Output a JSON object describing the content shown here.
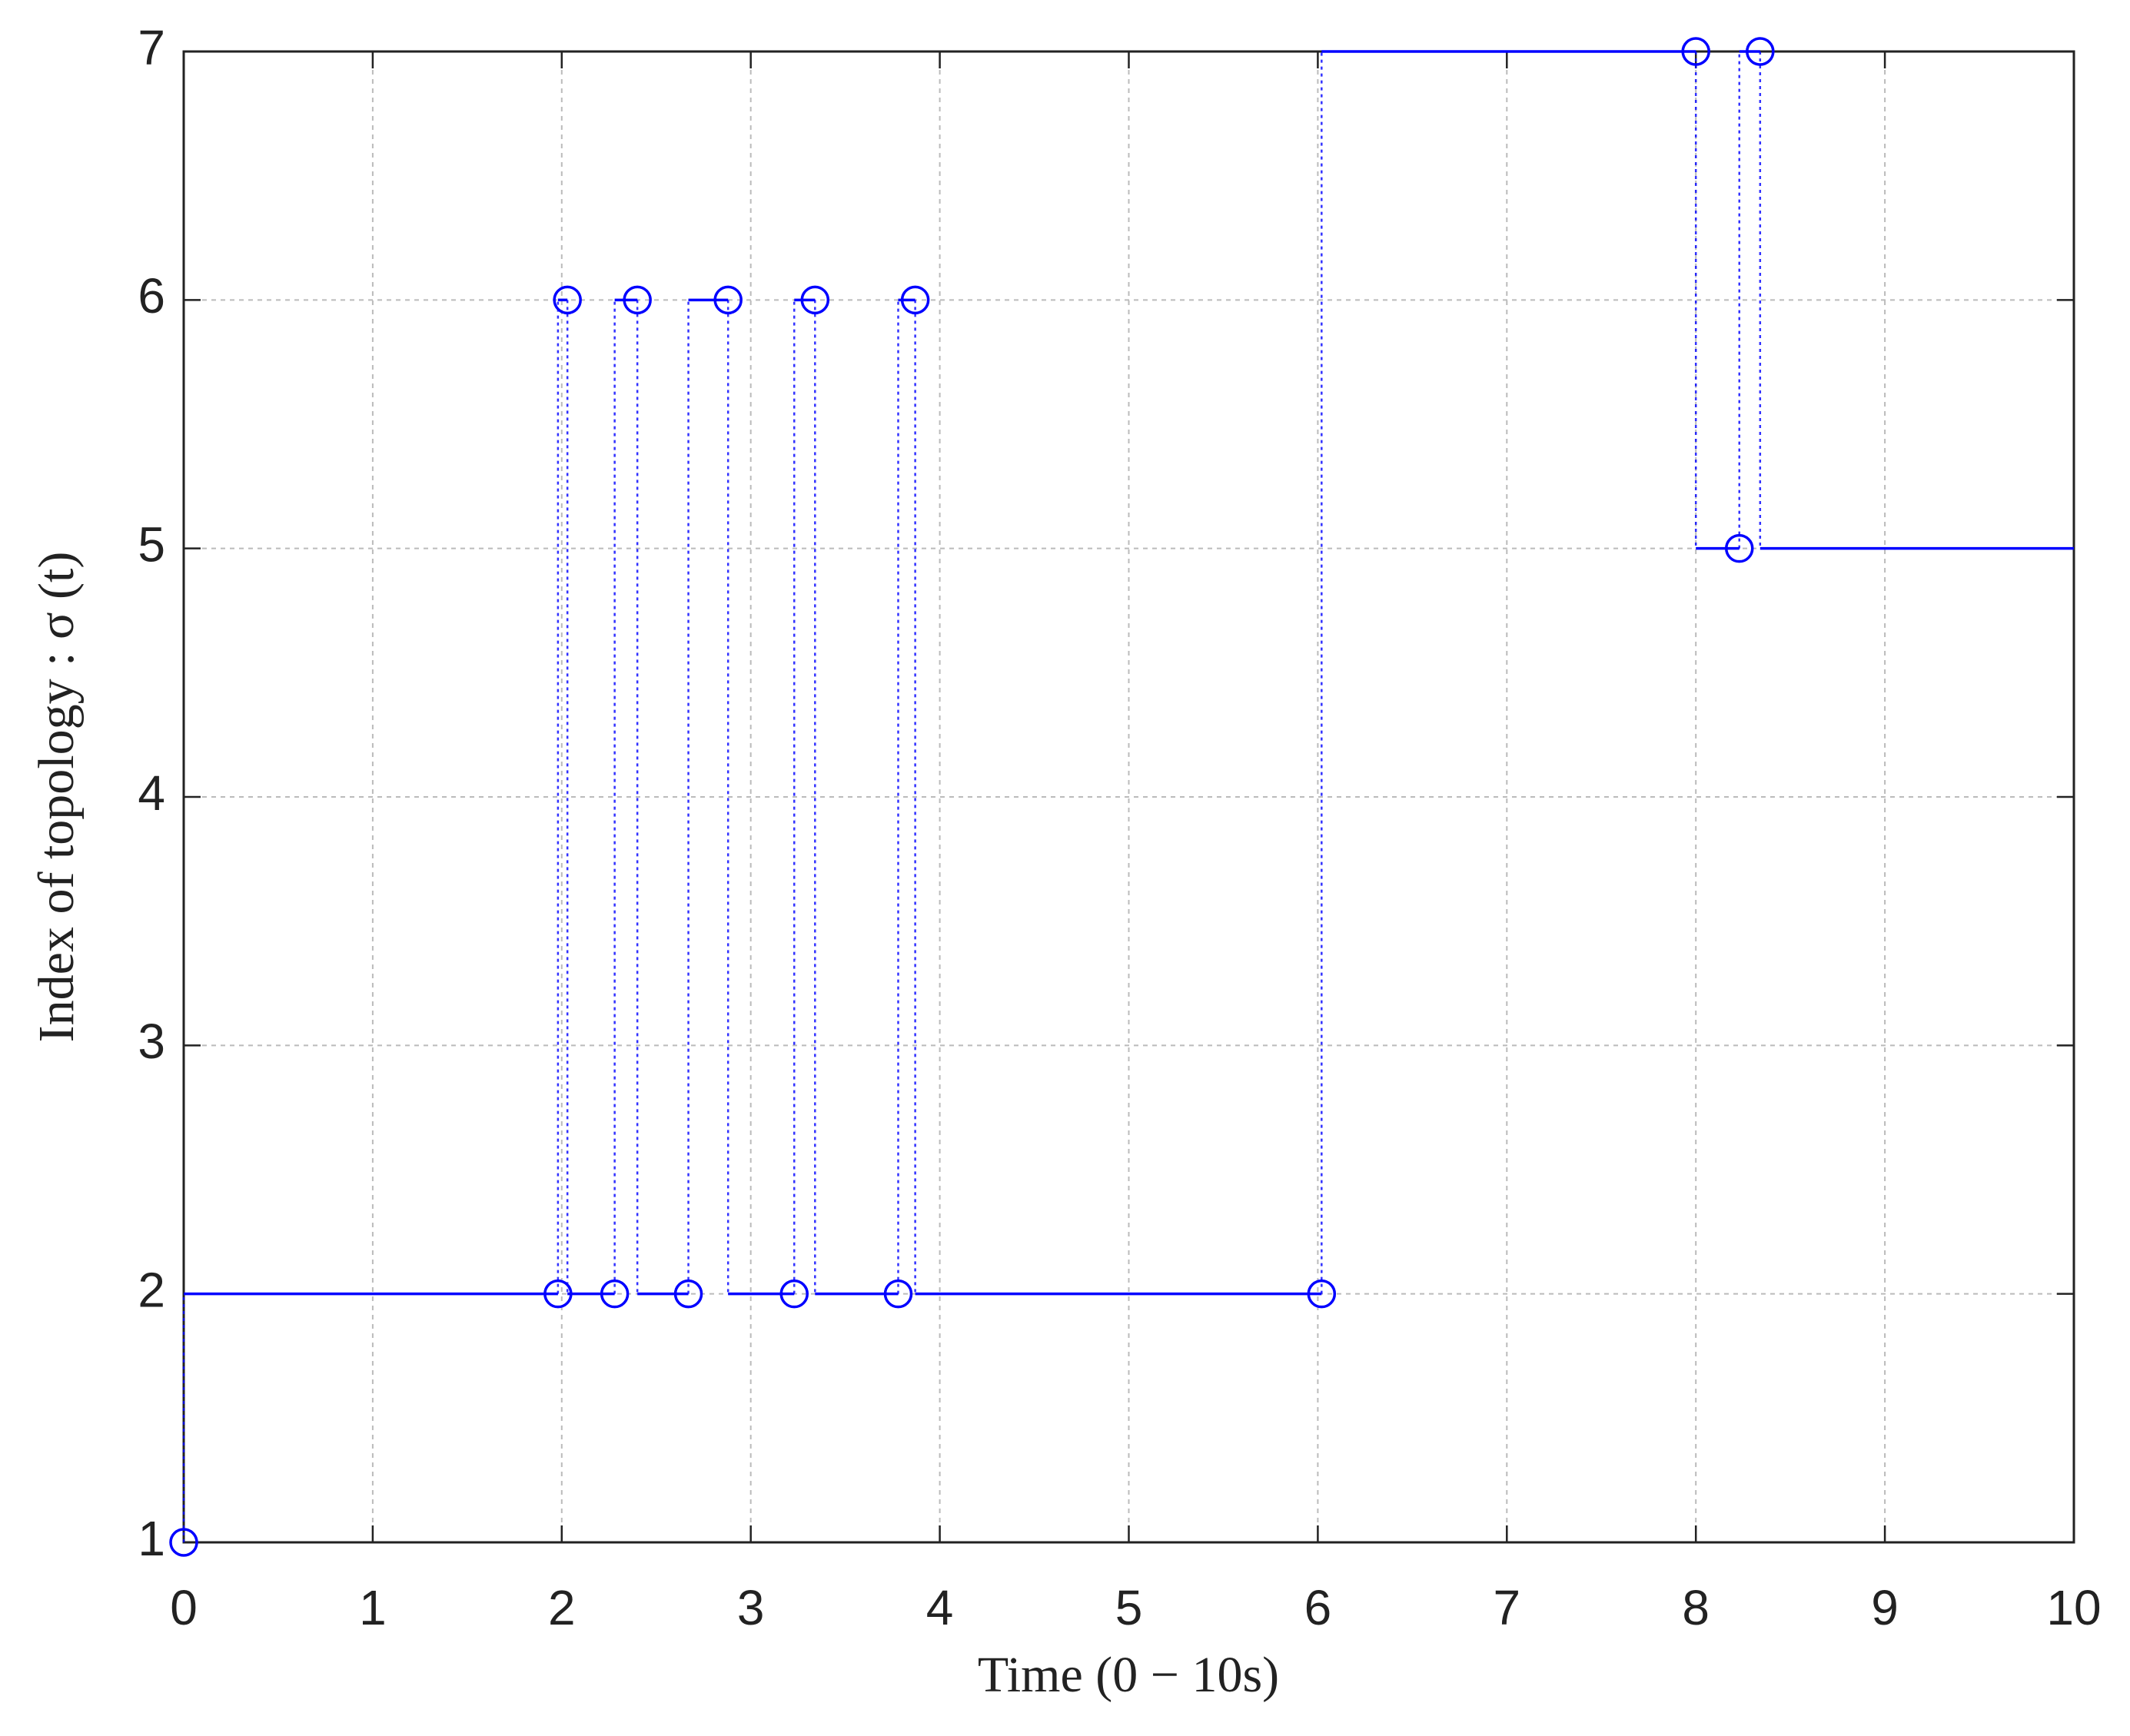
{
  "chart_data": {
    "type": "stairs",
    "xlabel": "Time (0 − 10s)",
    "ylabel": "Index of topology : σ (t)",
    "x": [
      0,
      1.98,
      2.03,
      2.28,
      2.4,
      2.67,
      2.88,
      3.23,
      3.34,
      3.78,
      3.87,
      6.02,
      8.0,
      8.23,
      8.34,
      10
    ],
    "values": [
      1,
      2,
      6,
      2,
      6,
      2,
      6,
      2,
      6,
      2,
      6,
      2,
      7,
      5,
      7,
      5
    ],
    "color": "#0000ff",
    "xlim": [
      0,
      10
    ],
    "xticks": [
      0,
      1,
      2,
      3,
      4,
      5,
      6,
      7,
      8,
      9,
      10
    ],
    "ylim": [
      1,
      7
    ],
    "yticks": [
      1,
      2,
      3,
      4,
      5,
      6,
      7
    ],
    "grid": true
  }
}
